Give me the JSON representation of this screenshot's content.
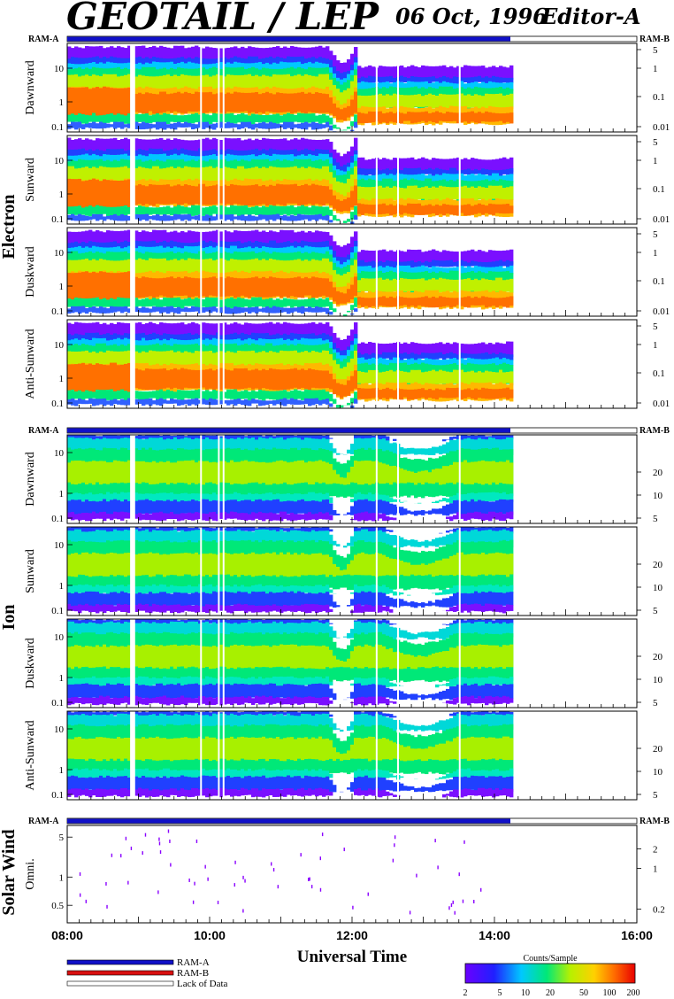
{
  "header": {
    "title": "GEOTAIL / LEP",
    "date": "06 Oct, 1996",
    "editor": "Editor-A"
  },
  "groups": [
    {
      "name": "Electron",
      "panels": [
        "e1",
        "e2",
        "e3",
        "e4"
      ]
    },
    {
      "name": "Ion",
      "panels": [
        "i1",
        "i2",
        "i3",
        "i4"
      ]
    },
    {
      "name": "Solar Wind",
      "panels": [
        "s1"
      ]
    }
  ],
  "strip_labels": {
    "left": "RAM-A",
    "right": "RAM-B"
  },
  "chart_data": [
    {
      "id": "e1",
      "type": "heatmap",
      "group": "Electron",
      "ylabel": "Dawnward",
      "left_ticks": [
        "10",
        "1",
        "0.1"
      ],
      "right_ticks": [
        "5",
        "1",
        "0.1",
        "0.01"
      ],
      "x_range": [
        "08:00",
        "16:00"
      ],
      "data_end": "14:13"
    },
    {
      "id": "e2",
      "type": "heatmap",
      "group": "Electron",
      "ylabel": "Sunward",
      "left_ticks": [
        "10",
        "1",
        "0.1"
      ],
      "right_ticks": [
        "5",
        "1",
        "0.1",
        "0.01"
      ],
      "x_range": [
        "08:00",
        "16:00"
      ],
      "data_end": "14:13"
    },
    {
      "id": "e3",
      "type": "heatmap",
      "group": "Electron",
      "ylabel": "Duskward",
      "left_ticks": [
        "10",
        "1",
        "0.1"
      ],
      "right_ticks": [
        "5",
        "1",
        "0.1",
        "0.01"
      ],
      "x_range": [
        "08:00",
        "16:00"
      ],
      "data_end": "14:13"
    },
    {
      "id": "e4",
      "type": "heatmap",
      "group": "Electron",
      "ylabel": "Anti-Sunward",
      "left_ticks": [
        "10",
        "1",
        "0.1"
      ],
      "right_ticks": [
        "5",
        "1",
        "0.1",
        "0.01"
      ],
      "x_range": [
        "08:00",
        "16:00"
      ],
      "data_end": "14:13"
    },
    {
      "id": "i1",
      "type": "heatmap",
      "group": "Ion",
      "ylabel": "Dawnward",
      "left_ticks": [
        "10",
        "1",
        "0.1"
      ],
      "right_ticks": [
        "20",
        "10",
        "5"
      ],
      "x_range": [
        "08:00",
        "16:00"
      ],
      "data_end": "14:13"
    },
    {
      "id": "i2",
      "type": "heatmap",
      "group": "Ion",
      "ylabel": "Sunward",
      "left_ticks": [
        "10",
        "1",
        "0.1"
      ],
      "right_ticks": [
        "20",
        "10",
        "5"
      ],
      "x_range": [
        "08:00",
        "16:00"
      ],
      "data_end": "14:13"
    },
    {
      "id": "i3",
      "type": "heatmap",
      "group": "Ion",
      "ylabel": "Duskward",
      "left_ticks": [
        "10",
        "1",
        "0.1"
      ],
      "right_ticks": [
        "20",
        "10",
        "5"
      ],
      "x_range": [
        "08:00",
        "16:00"
      ],
      "data_end": "14:13"
    },
    {
      "id": "i4",
      "type": "heatmap",
      "group": "Ion",
      "ylabel": "Anti-Sunward",
      "left_ticks": [
        "10",
        "1",
        "0.1"
      ],
      "right_ticks": [
        "20",
        "10",
        "5"
      ],
      "x_range": [
        "08:00",
        "16:00"
      ],
      "data_end": "14:13"
    },
    {
      "id": "s1",
      "type": "scatter",
      "group": "Solar Wind",
      "ylabel": "Omni.",
      "left_ticks": [
        "5",
        "1",
        "0.5"
      ],
      "right_ticks": [
        "2",
        "1",
        "0.2"
      ],
      "x_range": [
        "08:00",
        "16:00"
      ],
      "data_end": "14:13"
    }
  ],
  "data_gaps": [
    "08:53",
    "08:55",
    "09:52",
    "10:07",
    "10:11",
    "12:20",
    "12:38",
    "13:30"
  ],
  "xaxis": {
    "label": "Universal Time",
    "ticks": [
      "08:00",
      "10:00",
      "12:00",
      "14:00",
      "16:00"
    ]
  },
  "legend": {
    "items": [
      {
        "label": "RAM-A",
        "color": "#1010c8"
      },
      {
        "label": "RAM-B",
        "color": "#d81010"
      },
      {
        "label": "Lack of Data",
        "color": "#ffffff"
      }
    ]
  },
  "colorbar": {
    "title": "Counts/Sample",
    "ticks": [
      "2",
      "5",
      "10",
      "20",
      "50",
      "100",
      "200"
    ]
  }
}
